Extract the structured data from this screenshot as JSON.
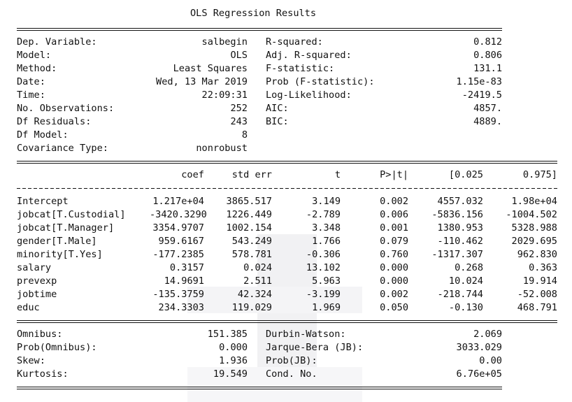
{
  "title": "OLS Regression Results",
  "summary_left": [
    {
      "label": "Dep. Variable:",
      "value": "salbegin"
    },
    {
      "label": "Model:",
      "value": "OLS"
    },
    {
      "label": "Method:",
      "value": "Least Squares"
    },
    {
      "label": "Date:",
      "value": "Wed, 13 Mar 2019"
    },
    {
      "label": "Time:",
      "value": "22:09:31"
    },
    {
      "label": "No. Observations:",
      "value": "252"
    },
    {
      "label": "Df Residuals:",
      "value": "243"
    },
    {
      "label": "Df Model:",
      "value": "8"
    },
    {
      "label": "Covariance Type:",
      "value": "nonrobust"
    }
  ],
  "summary_right": [
    {
      "label": "R-squared:",
      "value": "0.812"
    },
    {
      "label": "Adj. R-squared:",
      "value": "0.806"
    },
    {
      "label": "F-statistic:",
      "value": "131.1"
    },
    {
      "label": "Prob (F-statistic):",
      "value": "1.15e-83"
    },
    {
      "label": "Log-Likelihood:",
      "value": "-2419.5"
    },
    {
      "label": "AIC:",
      "value": "4857."
    },
    {
      "label": "BIC:",
      "value": "4889."
    }
  ],
  "coef_headers": [
    "coef",
    "std err",
    "t",
    "P>|t|",
    "[0.025",
    "0.975]"
  ],
  "coef_rows": [
    {
      "name": "Intercept",
      "cells": [
        "1.217e+04",
        "3865.517",
        "3.149",
        "0.002",
        "4557.032",
        "1.98e+04"
      ]
    },
    {
      "name": "jobcat[T.Custodial]",
      "cells": [
        "-3420.3290",
        "1226.449",
        "-2.789",
        "0.006",
        "-5836.156",
        "-1004.502"
      ]
    },
    {
      "name": "jobcat[T.Manager]",
      "cells": [
        "3354.9707",
        "1002.154",
        "3.348",
        "0.001",
        "1380.953",
        "5328.988"
      ]
    },
    {
      "name": "gender[T.Male]",
      "cells": [
        "959.6167",
        "543.249",
        "1.766",
        "0.079",
        "-110.462",
        "2029.695"
      ]
    },
    {
      "name": "minority[T.Yes]",
      "cells": [
        "-177.2385",
        "578.781",
        "-0.306",
        "0.760",
        "-1317.307",
        "962.830"
      ]
    },
    {
      "name": "salary",
      "cells": [
        "0.3157",
        "0.024",
        "13.102",
        "0.000",
        "0.268",
        "0.363"
      ]
    },
    {
      "name": "prevexp",
      "cells": [
        "14.9691",
        "2.511",
        "5.963",
        "0.000",
        "10.024",
        "19.914"
      ]
    },
    {
      "name": "jobtime",
      "cells": [
        "-135.3759",
        "42.324",
        "-3.199",
        "0.002",
        "-218.744",
        "-52.008"
      ]
    },
    {
      "name": "educ",
      "cells": [
        "234.3303",
        "119.029",
        "1.969",
        "0.050",
        "-0.130",
        "468.791"
      ]
    }
  ],
  "diag_left": [
    {
      "label": "Omnibus:",
      "value": "151.385"
    },
    {
      "label": "Prob(Omnibus):",
      "value": "0.000"
    },
    {
      "label": "Skew:",
      "value": "1.936"
    },
    {
      "label": "Kurtosis:",
      "value": "19.549"
    }
  ],
  "diag_right": [
    {
      "label": "Durbin-Watson:",
      "value": "2.069"
    },
    {
      "label": "Jarque-Bera (JB):",
      "value": "3033.029"
    },
    {
      "label": "Prob(JB):",
      "value": "0.00"
    },
    {
      "label": "Cond. No.",
      "value": "6.76e+05"
    }
  ]
}
